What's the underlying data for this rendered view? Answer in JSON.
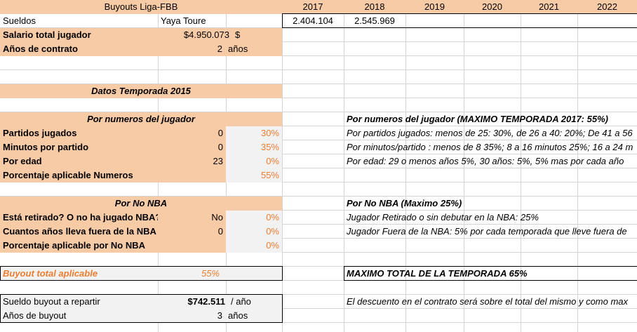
{
  "sheet": {
    "header": {
      "title": "Buyouts Liga-FBB",
      "years": [
        "2017",
        "2018",
        "2019",
        "2020",
        "2021",
        "2022"
      ]
    },
    "sueldos": {
      "label": "Sueldos",
      "player": "Yaya Toure",
      "values": [
        "2.404.104",
        "2.545.969",
        "",
        "",
        "",
        ""
      ]
    },
    "salario_total": {
      "label": "Salario total jugador",
      "value": "$4.950.073",
      "unit": "$"
    },
    "anios_contrato": {
      "label": "Años de contrato",
      "value": "2",
      "unit": "años"
    },
    "datos_temporada": "Datos Temporada 2015",
    "por_numeros": {
      "title": "Por numeros del jugador",
      "rows": [
        {
          "label": "Partidos jugados",
          "value": "0",
          "pct": "30%"
        },
        {
          "label": "Minutos por partido",
          "value": "0",
          "pct": "35%"
        },
        {
          "label": "Por edad",
          "value": "23",
          "pct": "0%"
        },
        {
          "label": "Porcentaje aplicable Numeros",
          "value": "",
          "pct": "55%"
        }
      ]
    },
    "por_no_nba": {
      "title": "Por No NBA",
      "rows": [
        {
          "label": "Está retirado? O no ha jugado NBA?",
          "value": "No",
          "pct": "0%"
        },
        {
          "label": "Cuantos años lleva fuera de la NBA",
          "value": "0",
          "pct": "0%"
        },
        {
          "label": "Porcentaje aplicable por No NBA",
          "value": "",
          "pct": "0%"
        }
      ]
    },
    "buyout_total": {
      "label": "Buyout total aplicable",
      "value": "55%"
    },
    "sueldo_buyout": {
      "label": "Sueldo buyout a repartir",
      "value": "$742.511",
      "unit": "/ año"
    },
    "anios_buyout": {
      "label": "Años de buyout",
      "value": "3",
      "unit": "años"
    },
    "notes": {
      "numeros_title": "Por numeros del jugador (MAXIMO TEMPORADA 2017: 55%)",
      "numeros_1": "Por partidos jugados: menos de 25: 30%, de 26 a 40: 20%; De 41 a 56",
      "numeros_2": "Por minutos/partido : menos de 8 35%; 8 a 16 minutos 25%; 16 a 24 m",
      "numeros_3": "Por edad: 29 o menos años 5%, 30 años: 5%, 5% mas por cada año",
      "no_nba_title": "Por No NBA (Maximo 25%)",
      "no_nba_1": "Jugador Retirado o sin debutar en la NBA: 25%",
      "no_nba_2": "Jugador Fuera de la NBA: 5% por cada temporada que lleve fuera de",
      "maximo_total": "MAXIMO TOTAL DE LA TEMPORADA 65%",
      "descuento": "El descuento en el contrato será sobre el total del mismo y como max"
    }
  }
}
